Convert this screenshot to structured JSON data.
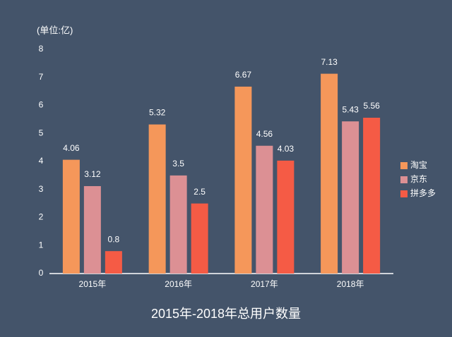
{
  "chart_data": {
    "type": "bar",
    "title": "2015年-2018年总用户数量",
    "y_label": "(单位:亿)",
    "categories": [
      "2015年",
      "2016年",
      "2017年",
      "2018年"
    ],
    "series": [
      {
        "name": "淘宝",
        "color": "#f5975a",
        "values": [
          4.06,
          5.32,
          6.67,
          7.13
        ]
      },
      {
        "name": "京东",
        "color": "#dc9094",
        "values": [
          3.12,
          3.5,
          4.56,
          5.43
        ]
      },
      {
        "name": "拼多多",
        "color": "#f55b45",
        "values": [
          0.8,
          2.5,
          4.03,
          5.56
        ]
      }
    ],
    "ylim": [
      0,
      8
    ],
    "yticks": [
      0,
      1,
      2,
      3,
      4,
      5,
      6,
      7,
      8
    ],
    "grid": false,
    "legend": "right"
  }
}
